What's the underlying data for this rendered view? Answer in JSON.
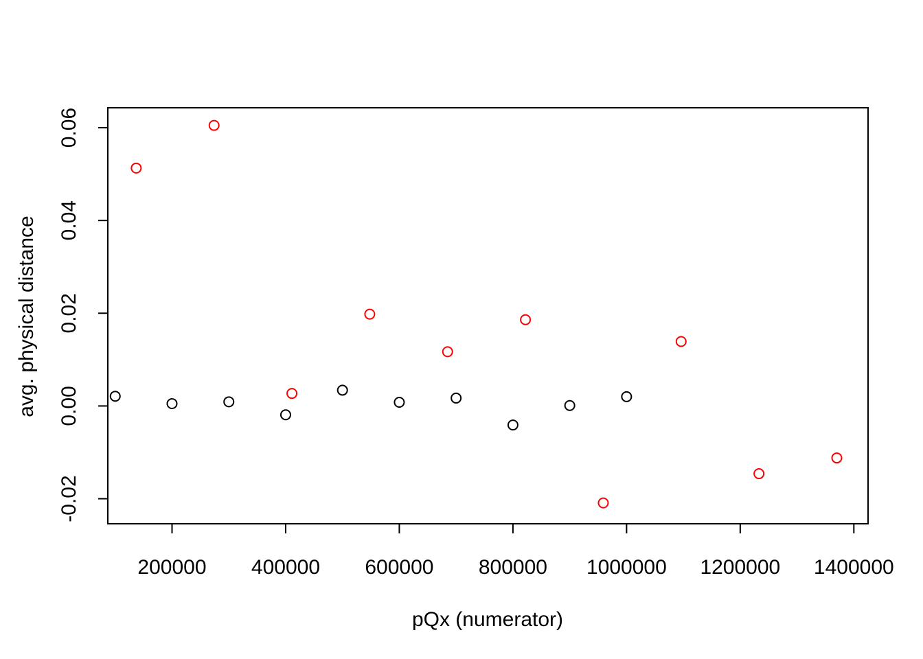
{
  "chart_data": {
    "type": "scatter",
    "xlabel": "pQx (numerator)",
    "ylabel": "avg. physical distance",
    "xlim": [
      87000,
      1425000
    ],
    "ylim": [
      -0.0254,
      0.0643
    ],
    "x_ticks": [
      200000,
      400000,
      600000,
      800000,
      1000000,
      1200000,
      1400000
    ],
    "x_tick_labels": [
      "200000",
      "400000",
      "600000",
      "800000",
      "1000000",
      "1200000",
      "1400000"
    ],
    "y_ticks": [
      -0.02,
      0.0,
      0.02,
      0.04,
      0.06
    ],
    "y_tick_labels": [
      "-0.02",
      "0.00",
      "0.02",
      "0.04",
      "0.06"
    ],
    "grid": false,
    "legend": "none",
    "series": [
      {
        "color": "#000000",
        "x": [
          100000,
          200000,
          300000,
          400000,
          500000,
          600000,
          700000,
          800000,
          900000,
          1000000
        ],
        "y": [
          0.0021,
          0.0005,
          0.0009,
          -0.0019,
          0.0034,
          0.0008,
          0.0017,
          -0.0041,
          0.0001,
          0.002
        ]
      },
      {
        "color": "#ff0000",
        "x": [
          137000,
          274000,
          411000,
          548000,
          685000,
          822000,
          959000,
          1096000,
          1233000,
          1370000
        ],
        "y": [
          0.0513,
          0.0605,
          0.0027,
          0.0198,
          0.0117,
          0.0186,
          -0.0209,
          0.0139,
          -0.0146,
          -0.0112
        ]
      }
    ]
  }
}
